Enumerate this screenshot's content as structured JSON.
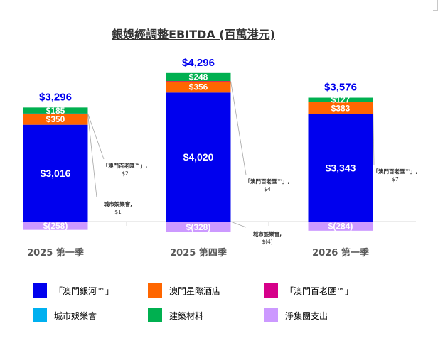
{
  "chart_data": {
    "type": "bar",
    "stacked": true,
    "title": "銀娛經調整EBITDA (百萬港元)",
    "categories": [
      "2025 第一季",
      "2025 第四季",
      "2026 第一季"
    ],
    "totals": [
      "$3,296",
      "$4,296",
      "$3,576"
    ],
    "series": [
      {
        "name": "「澳門銀河™」",
        "color": "#0000ee",
        "values": [
          3016,
          4020,
          3343
        ],
        "labels": [
          "$3,016",
          "$4,020",
          "$3,343"
        ]
      },
      {
        "name": "澳門星際酒店",
        "color": "#ff6600",
        "values": [
          350,
          356,
          383
        ],
        "labels": [
          "$350",
          "$356",
          "$383"
        ]
      },
      {
        "name": "「澳門百老匯™」",
        "color": "#d6008a",
        "values": [
          2,
          4,
          7
        ],
        "labels": [
          "",
          "",
          ""
        ]
      },
      {
        "name": "城市娛樂會",
        "color": "#00b0f0",
        "values": [
          1,
          -4,
          0
        ],
        "labels": [
          "",
          "",
          ""
        ]
      },
      {
        "name": "建築材料",
        "color": "#00b050",
        "values": [
          185,
          248,
          127
        ],
        "labels": [
          "$185",
          "$248",
          "$127"
        ]
      },
      {
        "name": "淨集團支出",
        "color": "#cc99ff",
        "values": [
          -258,
          -328,
          -284
        ],
        "labels": [
          "$(258)",
          "$(328)",
          "$(284)"
        ]
      }
    ],
    "callouts": [
      {
        "bar": 0,
        "series": 2,
        "name": "「澳門百老匯™」,",
        "value": "$2"
      },
      {
        "bar": 0,
        "series": 3,
        "name": "城市娛樂會,",
        "value": "$1"
      },
      {
        "bar": 1,
        "series": 2,
        "name": "「澳門百老匯™」,",
        "value": "$4"
      },
      {
        "bar": 1,
        "series": 3,
        "name": "城市娛樂會,",
        "value": "$(4)"
      },
      {
        "bar": 2,
        "series": 2,
        "name": "「澳門百老匯™」,",
        "value": "$7"
      }
    ],
    "legend": [
      {
        "label": "「澳門銀河™」",
        "color": "#0000ee"
      },
      {
        "label": "澳門星際酒店",
        "color": "#ff6600"
      },
      {
        "label": "「澳門百老匯™」",
        "color": "#d6008a"
      },
      {
        "label": "城市娛樂會",
        "color": "#00b0f0"
      },
      {
        "label": "建築材料",
        "color": "#00b050"
      },
      {
        "label": "淨集團支出",
        "color": "#cc99ff"
      }
    ],
    "legend_position": "bottom",
    "grid": false
  }
}
